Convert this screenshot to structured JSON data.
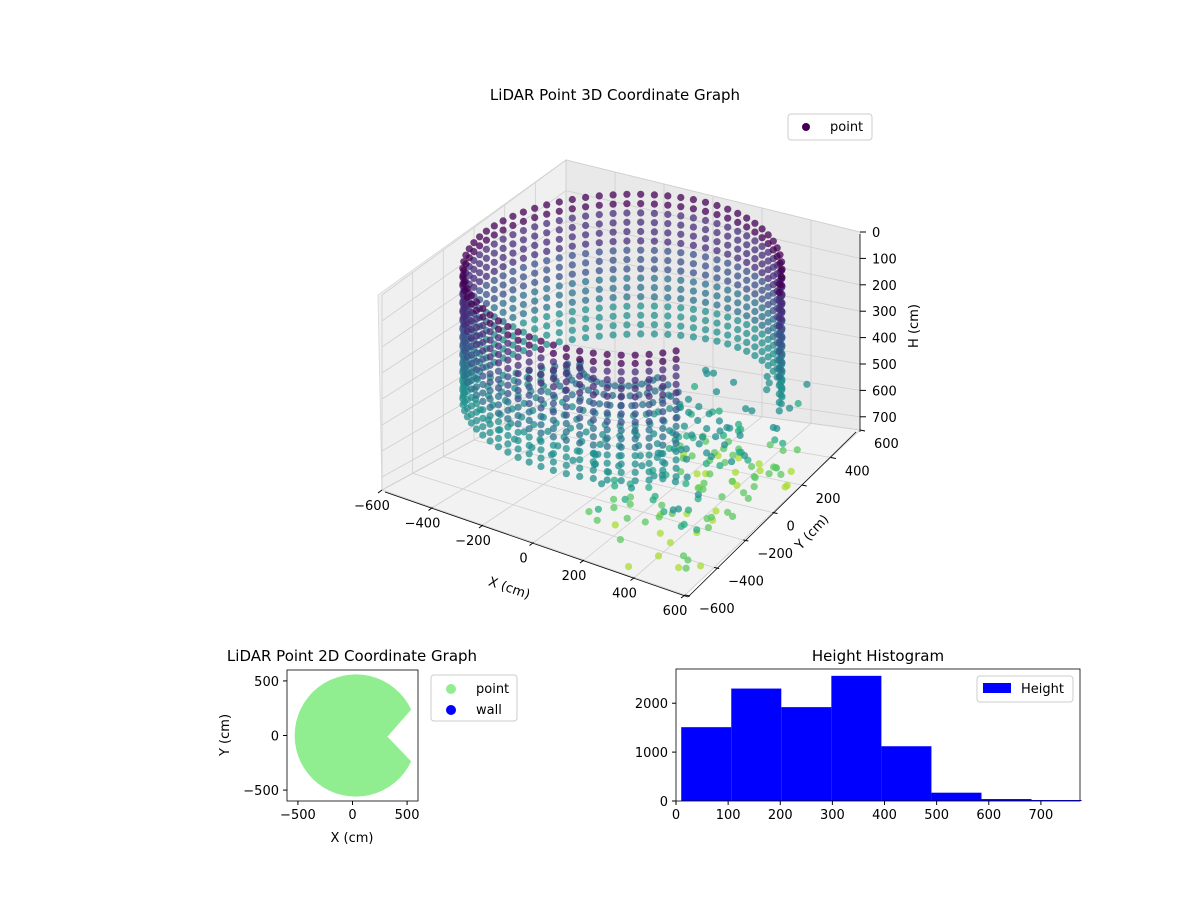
{
  "chart_data": [
    {
      "id": "scatter3d",
      "type": "scatter",
      "projection": "3d",
      "title": "LiDAR Point 3D Coordinate Graph",
      "xlabel": "X (cm)",
      "ylabel": "Y (cm)",
      "zlabel": "H (cm)",
      "xlim": [
        -600,
        600
      ],
      "ylim": [
        -600,
        600
      ],
      "zlim": [
        0,
        750
      ],
      "z_inverted": true,
      "x_ticks": [
        "−600",
        "−400",
        "−200",
        "0",
        "200",
        "400",
        "600"
      ],
      "y_ticks": [
        "−600",
        "−400",
        "−200",
        "0",
        "200",
        "400",
        "600"
      ],
      "z_ticks": [
        "0",
        "100",
        "200",
        "300",
        "400",
        "500",
        "600",
        "700"
      ],
      "colormap": "viridis",
      "legend": {
        "placement": "top-right",
        "entries": [
          {
            "label": "point",
            "color": "#440154"
          }
        ]
      },
      "series": [
        {
          "name": "point",
          "description_of_shape": "ring of points at radius ~550 cm from height 0 to ~500 cm, with scattered points extending toward the front-right at larger heights"
        }
      ],
      "grid": true
    },
    {
      "id": "scatter2d",
      "type": "scatter",
      "title": "LiDAR Point 2D Coordinate Graph",
      "xlabel": "X (cm)",
      "ylabel": "Y (cm)",
      "xlim": [
        -600,
        600
      ],
      "ylim": [
        -600,
        600
      ],
      "x_ticks": [
        -500,
        0,
        500
      ],
      "y_ticks": [
        -500,
        0,
        500
      ],
      "legend": {
        "placement": "outside-right",
        "entries": [
          {
            "label": "point",
            "color": "#90ee90"
          },
          {
            "label": "wall",
            "color": "#0000ff"
          }
        ]
      },
      "series": [
        {
          "name": "point",
          "color": "#90ee90",
          "shape": "filled disc radius ~560 cm with a wedge notch opening on the right side"
        },
        {
          "name": "wall",
          "color": "#0000ff",
          "values": []
        }
      ]
    },
    {
      "id": "histogram",
      "type": "bar",
      "title": "Height Histogram",
      "xlabel": "",
      "ylabel": "",
      "xlim": [
        0,
        775
      ],
      "ylim": [
        0,
        2700
      ],
      "x_ticks": [
        0,
        100,
        200,
        300,
        400,
        500,
        600,
        700
      ],
      "y_ticks": [
        0,
        1000,
        2000
      ],
      "bin_edges": [
        10,
        106,
        202,
        298,
        394,
        490,
        586,
        682,
        778
      ],
      "values": [
        1510,
        2300,
        1920,
        2560,
        1120,
        170,
        40,
        20
      ],
      "color": "#0000ff",
      "legend": {
        "placement": "top-right",
        "entries": [
          {
            "label": "Height",
            "color": "#0000ff"
          }
        ]
      }
    }
  ]
}
